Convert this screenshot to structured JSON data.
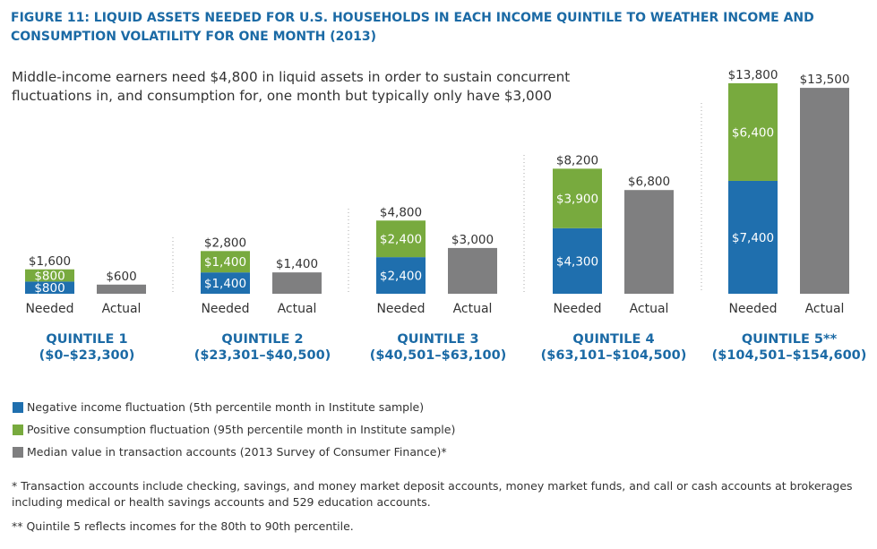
{
  "header": {
    "title": "FIGURE 11: LIQUID ASSETS NEEDED FOR U.S. HOUSEHOLDS IN EACH INCOME QUINTILE TO WEATHER INCOME AND CONSUMPTION VOLATILITY FOR ONE MONTH (2013)",
    "subtitle": "Middle-income earners need $4,800 in liquid assets in order to sustain concurrent fluctuations in, and consumption for, one month but typically only have $3,000"
  },
  "colors": {
    "negative_income": "#1f6fae",
    "positive_consumption": "#78aa3e",
    "median_value": "#7f7f80",
    "title": "#1b6aa5",
    "bar_label": "#ffffff",
    "divider": "#aaaaaa"
  },
  "chart_data": {
    "type": "bar",
    "stacked": true,
    "bar_labels": [
      "Needed",
      "Actual"
    ],
    "groups": [
      {
        "name": "QUINTILE 1",
        "range": "($0–$23,300)",
        "needed": {
          "negative_income": 800,
          "positive_consumption": 800,
          "total": 1600,
          "labels": {
            "negative_income": "$800",
            "positive_consumption": "$800",
            "total": "$1,600"
          }
        },
        "actual": {
          "median_value": 600,
          "label": "$600"
        }
      },
      {
        "name": "QUINTILE 2",
        "range": "($23,301–$40,500)",
        "needed": {
          "negative_income": 1400,
          "positive_consumption": 1400,
          "total": 2800,
          "labels": {
            "negative_income": "$1,400",
            "positive_consumption": "$1,400",
            "total": "$2,800"
          }
        },
        "actual": {
          "median_value": 1400,
          "label": "$1,400"
        }
      },
      {
        "name": "QUINTILE 3",
        "range": "($40,501–$63,100)",
        "needed": {
          "negative_income": 2400,
          "positive_consumption": 2400,
          "total": 4800,
          "labels": {
            "negative_income": "$2,400",
            "positive_consumption": "$2,400",
            "total": "$4,800"
          }
        },
        "actual": {
          "median_value": 3000,
          "label": "$3,000"
        }
      },
      {
        "name": "QUINTILE 4",
        "range": "($63,101–$104,500)",
        "needed": {
          "negative_income": 4300,
          "positive_consumption": 3900,
          "total": 8200,
          "labels": {
            "negative_income": "$4,300",
            "positive_consumption": "$3,900",
            "total": "$8,200"
          }
        },
        "actual": {
          "median_value": 6800,
          "label": "$6,800"
        }
      },
      {
        "name": "QUINTILE 5**",
        "range": "($104,501–$154,600)",
        "needed": {
          "negative_income": 7400,
          "positive_consumption": 6400,
          "total": 13800,
          "labels": {
            "negative_income": "$7,400",
            "positive_consumption": "$6,400",
            "total": "$13,800"
          }
        },
        "actual": {
          "median_value": 13500,
          "label": "$13,500"
        }
      }
    ],
    "ylim": [
      0,
      13800
    ],
    "grid": false,
    "legend_placement": "bottom-left"
  },
  "legend": [
    {
      "key": "negative_income",
      "text": "Negative income fluctuation (5th percentile month in Institute sample)"
    },
    {
      "key": "positive_consumption",
      "text": "Positive consumption fluctuation (95th percentile month in Institute sample)"
    },
    {
      "key": "median_value",
      "text": "Median value in transaction accounts (2013 Survey of Consumer Finance)*"
    }
  ],
  "notes": [
    "* Transaction accounts include checking, savings, and money market deposit accounts, money market funds, and call or cash accounts at brokerages including medical or health savings accounts and 529 education accounts.",
    "** Quintile 5 reflects incomes for the 80th to 90th percentile."
  ]
}
